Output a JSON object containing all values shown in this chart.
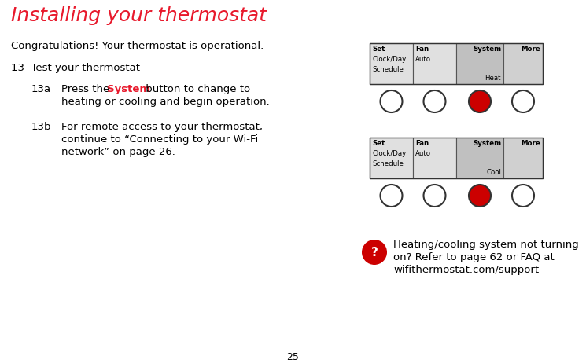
{
  "title": "Installing your thermostat",
  "title_color": "#e8192c",
  "title_fontsize": 18,
  "background_color": "#ffffff",
  "page_number": "25",
  "congrats_text": "Congratulations! Your thermostat is operational.",
  "step13_text": "13  Test your thermostat",
  "step13a_label": "13a",
  "step13a_pre": "Press the ",
  "step13a_system": "System",
  "step13a_post": " button to change to",
  "step13a_line2": "heating or cooling and begin operation.",
  "step13b_label": "13b",
  "step13b_line1": "For remote access to your thermostat,",
  "step13b_line2": "continue to “Connecting to your Wi-Fi",
  "step13b_line3": "network” on page 26.",
  "system_color": "#e8192c",
  "warning_line1": "Heating/cooling system not turning",
  "warning_line2": "on? Refer to page 62 or FAQ at",
  "warning_line3": "wifithermostat.com/support",
  "display1_cols": [
    "Set\nClock/Day\nSchedule",
    "Fan\nAuto",
    "System\nHeat",
    "More"
  ],
  "display2_cols": [
    "Set\nClock/Day\nSchedule",
    "Fan\nAuto",
    "System\nCool",
    "More"
  ],
  "button_colors": [
    "#ffffff",
    "#ffffff",
    "#cc0000",
    "#ffffff"
  ],
  "col_colors": [
    "#e0e0e0",
    "#e0e0e0",
    "#c0c0c0",
    "#d0d0d0"
  ],
  "fs_body": 9.5,
  "fs_small": 6.2
}
